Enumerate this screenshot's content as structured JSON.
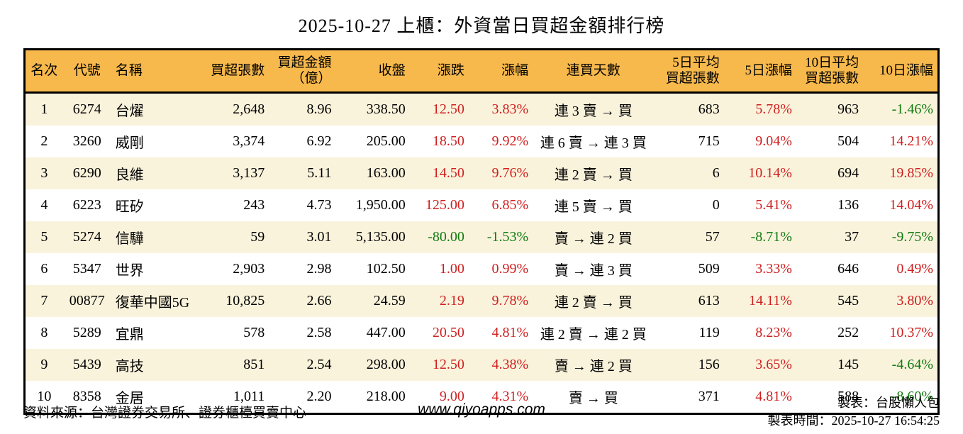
{
  "title": "2025-10-27 上櫃：外資當日買超金額排行榜",
  "colors": {
    "header_bg": "#f7b94c",
    "row_stripe": "#faf3dc",
    "up_red": "#d02020",
    "down_green": "#117b11",
    "border": "#000000"
  },
  "table": {
    "headers": [
      "名次",
      "代號",
      "名稱",
      "買超張數",
      "買超金額\n（億）",
      "收盤",
      "漲跌",
      "漲幅",
      "連買天數",
      "5日平均\n買超張數",
      "5日漲幅",
      "10日平均\n買超張數",
      "10日漲幅"
    ],
    "colored_columns": [
      6,
      7,
      10,
      12
    ],
    "rows": [
      [
        "1",
        "6274",
        "台燿",
        "2,648",
        "8.96",
        "338.50",
        "12.50",
        "3.83%",
        "連 3 賣 → 買",
        "683",
        "5.78%",
        "963",
        "-1.46%"
      ],
      [
        "2",
        "3260",
        "威剛",
        "3,374",
        "6.92",
        "205.00",
        "18.50",
        "9.92%",
        "連 6 賣 → 連 3 買",
        "715",
        "9.04%",
        "504",
        "14.21%"
      ],
      [
        "3",
        "6290",
        "良維",
        "3,137",
        "5.11",
        "163.00",
        "14.50",
        "9.76%",
        "連 2 賣 → 買",
        "6",
        "10.14%",
        "694",
        "19.85%"
      ],
      [
        "4",
        "6223",
        "旺矽",
        "243",
        "4.73",
        "1,950.00",
        "125.00",
        "6.85%",
        "連 5 賣 → 買",
        "0",
        "5.41%",
        "136",
        "14.04%"
      ],
      [
        "5",
        "5274",
        "信驊",
        "59",
        "3.01",
        "5,135.00",
        "-80.00",
        "-1.53%",
        "賣 → 連 2 買",
        "57",
        "-8.71%",
        "37",
        "-9.75%"
      ],
      [
        "6",
        "5347",
        "世界",
        "2,903",
        "2.98",
        "102.50",
        "1.00",
        "0.99%",
        "賣 → 連 3 買",
        "509",
        "3.33%",
        "646",
        "0.49%"
      ],
      [
        "7",
        "00877",
        "復華中國5G",
        "10,825",
        "2.66",
        "24.59",
        "2.19",
        "9.78%",
        "連 2 賣 → 買",
        "613",
        "14.11%",
        "545",
        "3.80%"
      ],
      [
        "8",
        "5289",
        "宜鼎",
        "578",
        "2.58",
        "447.00",
        "20.50",
        "4.81%",
        "連 2 賣 → 連 2 買",
        "119",
        "8.23%",
        "252",
        "10.37%"
      ],
      [
        "9",
        "5439",
        "高技",
        "851",
        "2.54",
        "298.00",
        "12.50",
        "4.38%",
        "賣 → 連 2 買",
        "156",
        "3.65%",
        "145",
        "-4.64%"
      ],
      [
        "10",
        "8358",
        "金居",
        "1,011",
        "2.20",
        "218.00",
        "9.00",
        "4.31%",
        "賣 → 買",
        "371",
        "4.81%",
        "588",
        "-8.60%"
      ]
    ]
  },
  "footer": {
    "source": "資料來源：台灣證券交易所、證券櫃檯買賣中心",
    "website": "www.qiyoapps.com",
    "maker": "製表：台股懶人包",
    "made_time": "製表時間：2025-10-27 16:54:25"
  },
  "chart_data": {
    "type": "table",
    "title": "2025-10-27 上櫃：外資當日買超金額排行榜",
    "columns": [
      "名次",
      "代號",
      "名稱",
      "買超張數",
      "買超金額（億）",
      "收盤",
      "漲跌",
      "漲幅",
      "連買天數",
      "5日平均買超張數",
      "5日漲幅",
      "10日平均買超張數",
      "10日漲幅"
    ],
    "rows": [
      [
        "1",
        "6274",
        "台燿",
        "2,648",
        "8.96",
        "338.50",
        "12.50",
        "3.83%",
        "連3賣→買",
        "683",
        "5.78%",
        "963",
        "-1.46%"
      ],
      [
        "2",
        "3260",
        "威剛",
        "3,374",
        "6.92",
        "205.00",
        "18.50",
        "9.92%",
        "連6賣→連3買",
        "715",
        "9.04%",
        "504",
        "14.21%"
      ],
      [
        "3",
        "6290",
        "良維",
        "3,137",
        "5.11",
        "163.00",
        "14.50",
        "9.76%",
        "連2賣→買",
        "6",
        "10.14%",
        "694",
        "19.85%"
      ],
      [
        "4",
        "6223",
        "旺矽",
        "243",
        "4.73",
        "1,950.00",
        "125.00",
        "6.85%",
        "連5賣→買",
        "0",
        "5.41%",
        "136",
        "14.04%"
      ],
      [
        "5",
        "5274",
        "信驊",
        "59",
        "3.01",
        "5,135.00",
        "-80.00",
        "-1.53%",
        "賣→連2買",
        "57",
        "-8.71%",
        "37",
        "-9.75%"
      ],
      [
        "6",
        "5347",
        "世界",
        "2,903",
        "2.98",
        "102.50",
        "1.00",
        "0.99%",
        "賣→連3買",
        "509",
        "3.33%",
        "646",
        "0.49%"
      ],
      [
        "7",
        "00877",
        "復華中國5G",
        "10,825",
        "2.66",
        "24.59",
        "2.19",
        "9.78%",
        "連2賣→買",
        "613",
        "14.11%",
        "545",
        "3.80%"
      ],
      [
        "8",
        "5289",
        "宜鼎",
        "578",
        "2.58",
        "447.00",
        "20.50",
        "4.81%",
        "連2賣→連2買",
        "119",
        "8.23%",
        "252",
        "10.37%"
      ],
      [
        "9",
        "5439",
        "高技",
        "851",
        "2.54",
        "298.00",
        "12.50",
        "4.38%",
        "賣→連2買",
        "156",
        "3.65%",
        "145",
        "-4.64%"
      ],
      [
        "10",
        "8358",
        "金居",
        "1,011",
        "2.20",
        "218.00",
        "9.00",
        "4.31%",
        "賣→買",
        "371",
        "4.81%",
        "588",
        "-8.60%"
      ]
    ],
    "legend_position": "none",
    "notes": "positive change values shown in red, negative in green; odd rows cream striped"
  }
}
